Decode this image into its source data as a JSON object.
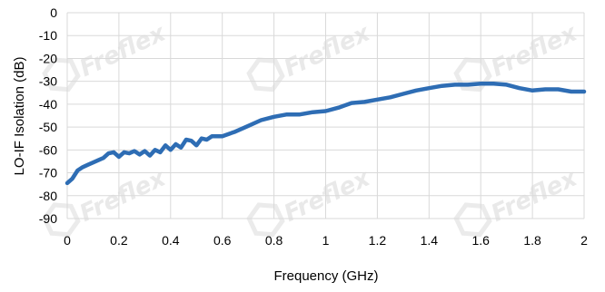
{
  "chart_data": {
    "type": "line",
    "title": "",
    "xlabel": "Frequency (GHz)",
    "ylabel": "LO-IF Isolation (dB)",
    "xlim": [
      0,
      2
    ],
    "ylim": [
      -90,
      0
    ],
    "x_ticks": [
      "0",
      "0.2",
      "0.4",
      "0.6",
      "0.8",
      "1",
      "1.2",
      "1.4",
      "1.6",
      "1.8",
      "2"
    ],
    "y_ticks": [
      "0",
      "-10",
      "-20",
      "-30",
      "-40",
      "-50",
      "-60",
      "-70",
      "-80",
      "-90"
    ],
    "grid": true,
    "watermark": "Freflex",
    "series": [
      {
        "color": "#2e6db4",
        "x": [
          0,
          0.02,
          0.04,
          0.06,
          0.08,
          0.1,
          0.12,
          0.14,
          0.16,
          0.18,
          0.2,
          0.22,
          0.24,
          0.26,
          0.28,
          0.3,
          0.32,
          0.34,
          0.36,
          0.38,
          0.4,
          0.42,
          0.44,
          0.46,
          0.48,
          0.5,
          0.52,
          0.54,
          0.56,
          0.58,
          0.6,
          0.65,
          0.7,
          0.75,
          0.8,
          0.85,
          0.9,
          0.95,
          1.0,
          1.05,
          1.1,
          1.15,
          1.2,
          1.25,
          1.3,
          1.35,
          1.4,
          1.45,
          1.5,
          1.55,
          1.6,
          1.65,
          1.7,
          1.75,
          1.8,
          1.85,
          1.9,
          1.95,
          2.0
        ],
        "y": [
          -74.5,
          -72.5,
          -69,
          -67.5,
          -66.5,
          -65.5,
          -64.5,
          -63.5,
          -61.5,
          -61,
          -63,
          -61,
          -61.5,
          -60.5,
          -62,
          -60.5,
          -62.5,
          -60,
          -61,
          -58,
          -60,
          -57.5,
          -59,
          -55.5,
          -56,
          -58,
          -55,
          -55.5,
          -54,
          -54,
          -54,
          -52,
          -49.5,
          -47,
          -45.5,
          -44.5,
          -44.5,
          -43.5,
          -43,
          -41.5,
          -39.5,
          -39,
          -38,
          -37,
          -35.5,
          -34,
          -33,
          -32,
          -31.5,
          -31.5,
          -31,
          -31,
          -31.5,
          -33,
          -34,
          -33.5,
          -33.5,
          -34.5,
          -34.5
        ]
      }
    ]
  }
}
